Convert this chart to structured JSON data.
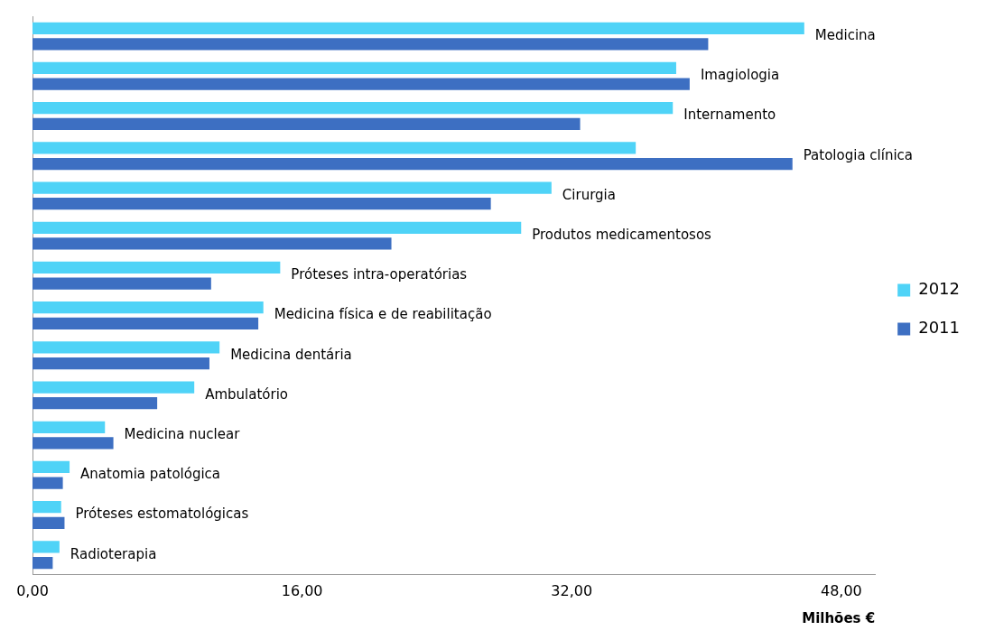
{
  "chart_data": {
    "type": "bar",
    "orientation": "horizontal",
    "xlabel": "Milhões €",
    "categories": [
      "Medicina",
      "Imagiologia",
      "Internamento",
      "Patologia clínica",
      "Cirurgia",
      "Produtos medicamentosos",
      "Próteses intra-operatórias",
      "Medicina física e de reabilitação",
      "Medicina dentária",
      "Ambulatório",
      "Medicina nuclear",
      "Anatomia patológica",
      "Próteses estomatológicas",
      "Radioterapia"
    ],
    "series": [
      {
        "name": "2012",
        "color": "#4fd3f7",
        "values": [
          45.8,
          38.2,
          38.0,
          35.8,
          30.8,
          29.0,
          14.7,
          13.7,
          11.1,
          9.6,
          4.3,
          2.2,
          1.7,
          1.6
        ]
      },
      {
        "name": "2011",
        "color": "#3d6fc2",
        "values": [
          40.1,
          39.0,
          32.5,
          45.1,
          27.2,
          21.3,
          10.6,
          13.4,
          10.5,
          7.4,
          4.8,
          1.8,
          1.9,
          1.2
        ]
      }
    ],
    "xlim": [
      0,
      50
    ],
    "xticks": [
      {
        "value": 0,
        "label": "0,00"
      },
      {
        "value": 16,
        "label": "16,00"
      },
      {
        "value": 32,
        "label": "32,00"
      },
      {
        "value": 48,
        "label": "48,00"
      }
    ],
    "tick_labels": "x",
    "grid": false,
    "legend": "right"
  }
}
